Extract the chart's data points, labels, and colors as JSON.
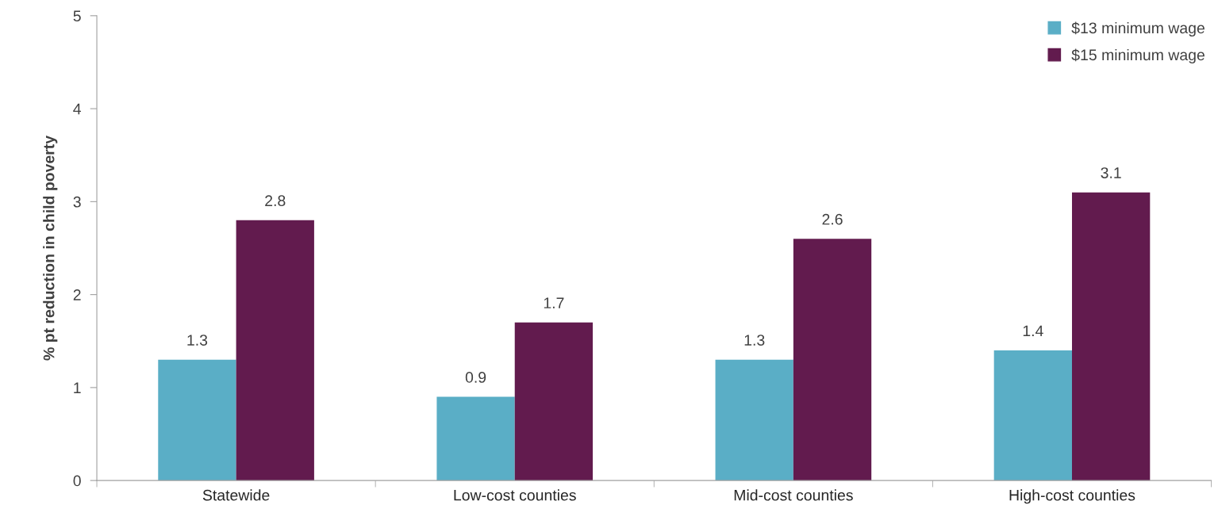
{
  "chart_data": {
    "type": "bar",
    "ylabel": "% pt reduction in child poverty",
    "categories": [
      "Statewide",
      "Low-cost counties",
      "Mid-cost counties",
      "High-cost counties"
    ],
    "series": [
      {
        "name": "$13 minimum wage",
        "color": "#5aaec6",
        "values": [
          1.3,
          0.9,
          1.3,
          1.4
        ]
      },
      {
        "name": "$15 minimum wage",
        "color": "#621b4e",
        "values": [
          2.8,
          1.7,
          2.6,
          3.1
        ]
      }
    ],
    "ylim": [
      0,
      5
    ],
    "yticks": [
      0,
      1,
      2,
      3,
      4,
      5
    ],
    "grid": false,
    "legend": "top right",
    "data_labels": true
  }
}
